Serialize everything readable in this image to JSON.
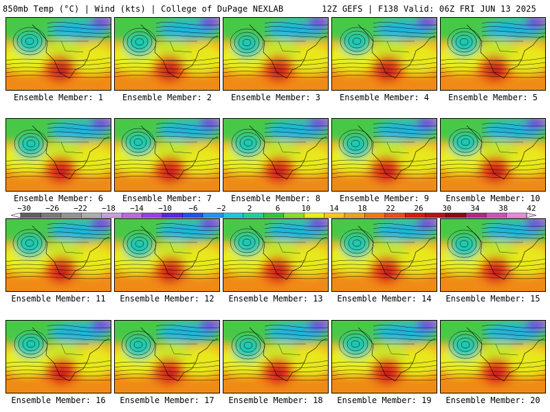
{
  "header": {
    "left": "850mb Temp (°C) | Wind (kts) | College of DuPage NEXLAB",
    "right": "12Z GEFS | F138 Valid: 06Z FRI JUN 13 2025"
  },
  "colorbar": {
    "tick_labels": [
      "−30",
      "−26",
      "−22",
      "−18",
      "−14",
      "−10",
      "−6",
      "−2",
      "2",
      "6",
      "10",
      "14",
      "18",
      "22",
      "26",
      "30",
      "34",
      "38",
      "42"
    ],
    "bin_colors": [
      "#5f5f5f",
      "#7a7a7a",
      "#949494",
      "#aeaeae",
      "#c8a0d8",
      "#b46ee0",
      "#9640e6",
      "#5a28dc",
      "#2850e6",
      "#1e96f0",
      "#1ec8dc",
      "#1ed296",
      "#32c832",
      "#8cdc28",
      "#e6f01e",
      "#f5c81e",
      "#f5a01e",
      "#f07814",
      "#e65014",
      "#d21e14",
      "#b4141e",
      "#8c0a14",
      "#b4287a",
      "#d250b4",
      "#e68cdc"
    ]
  },
  "panels": [
    {
      "label": "Ensemble Member: 1"
    },
    {
      "label": "Ensemble Member: 2"
    },
    {
      "label": "Ensemble Member: 3"
    },
    {
      "label": "Ensemble Member: 4"
    },
    {
      "label": "Ensemble Member: 5"
    },
    {
      "label": "Ensemble Member: 6"
    },
    {
      "label": "Ensemble Member: 7"
    },
    {
      "label": "Ensemble Member: 8"
    },
    {
      "label": "Ensemble Member: 9"
    },
    {
      "label": "Ensemble Member: 10"
    },
    {
      "label": "Ensemble Member: 11"
    },
    {
      "label": "Ensemble Member: 12"
    },
    {
      "label": "Ensemble Member: 13"
    },
    {
      "label": "Ensemble Member: 14"
    },
    {
      "label": "Ensemble Member: 15"
    },
    {
      "label": "Ensemble Member: 16"
    },
    {
      "label": "Ensemble Member: 17"
    },
    {
      "label": "Ensemble Member: 18"
    },
    {
      "label": "Ensemble Member: 19"
    },
    {
      "label": "Ensemble Member: 20"
    }
  ]
}
